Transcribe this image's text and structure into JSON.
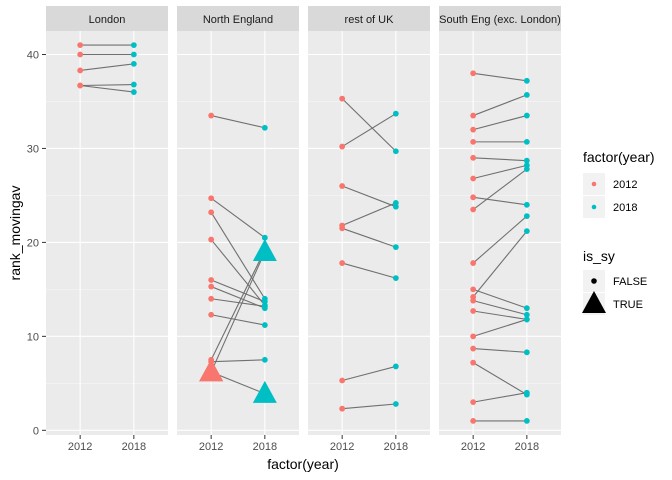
{
  "chart_data": {
    "type": "line",
    "xlabel": "factor(year)",
    "ylabel": "rank_movingav",
    "categories": [
      "2012",
      "2018"
    ],
    "ylim": [
      -0.5,
      42.5
    ],
    "y_ticks": [
      0,
      10,
      20,
      30,
      40
    ],
    "grid": true,
    "colors": {
      "2012": "#F8766D",
      "2018": "#00BFC4",
      "line": "#707070",
      "panel_bg": "#EBEBEB",
      "strip_bg": "#D9D9D9",
      "grid_major": "#FFFFFF"
    },
    "legend_position": "right",
    "legends": [
      {
        "title": "factor(year)",
        "type": "color",
        "entries": [
          "2012",
          "2018"
        ]
      },
      {
        "title": "is_sy",
        "type": "shape",
        "entries": [
          "FALSE",
          "TRUE"
        ]
      }
    ],
    "facets": [
      {
        "label": "London",
        "segments": [
          {
            "y2012": 41.0,
            "y2018": 41.0,
            "is_sy": false
          },
          {
            "y2012": 40.0,
            "y2018": 40.0,
            "is_sy": false
          },
          {
            "y2012": 38.3,
            "y2018": 39.0,
            "is_sy": false
          },
          {
            "y2012": 36.7,
            "y2018": 36.8,
            "is_sy": false
          },
          {
            "y2012": 36.7,
            "y2018": 36.0,
            "is_sy": false
          }
        ]
      },
      {
        "label": "North England",
        "segments": [
          {
            "y2012": 33.5,
            "y2018": 32.2,
            "is_sy": false
          },
          {
            "y2012": 24.7,
            "y2018": 20.5,
            "is_sy": false
          },
          {
            "y2012": 23.2,
            "y2018": 14.0,
            "is_sy": false
          },
          {
            "y2012": 20.3,
            "y2018": 13.3,
            "is_sy": false
          },
          {
            "y2012": 16.0,
            "y2018": 13.7,
            "is_sy": false
          },
          {
            "y2012": 15.3,
            "y2018": 13.0,
            "is_sy": false
          },
          {
            "y2012": 14.0,
            "y2018": 13.2,
            "is_sy": false
          },
          {
            "y2012": 12.3,
            "y2018": 11.2,
            "is_sy": false
          },
          {
            "y2012": 7.5,
            "y2018": 19.2,
            "is_sy": false
          },
          {
            "y2012": 7.3,
            "y2018": 7.5,
            "is_sy": false
          },
          {
            "y2012": 6.2,
            "y2018": 19.0,
            "is_sy": true
          },
          {
            "y2012": 6.2,
            "y2018": 3.9,
            "is_sy": true
          }
        ]
      },
      {
        "label": "rest of UK",
        "segments": [
          {
            "y2012": 35.3,
            "y2018": 29.7,
            "is_sy": false
          },
          {
            "y2012": 30.2,
            "y2018": 33.7,
            "is_sy": false
          },
          {
            "y2012": 26.0,
            "y2018": 23.8,
            "is_sy": false
          },
          {
            "y2012": 21.8,
            "y2018": 24.2,
            "is_sy": false
          },
          {
            "y2012": 21.5,
            "y2018": 19.5,
            "is_sy": false
          },
          {
            "y2012": 17.8,
            "y2018": 16.2,
            "is_sy": false
          },
          {
            "y2012": 5.3,
            "y2018": 6.8,
            "is_sy": false
          },
          {
            "y2012": 2.3,
            "y2018": 2.8,
            "is_sy": false
          }
        ]
      },
      {
        "label": "South Eng (exc. London)",
        "segments": [
          {
            "y2012": 38.0,
            "y2018": 37.2,
            "is_sy": false
          },
          {
            "y2012": 33.5,
            "y2018": 35.7,
            "is_sy": false
          },
          {
            "y2012": 32.0,
            "y2018": 33.5,
            "is_sy": false
          },
          {
            "y2012": 30.7,
            "y2018": 30.7,
            "is_sy": false
          },
          {
            "y2012": 29.0,
            "y2018": 28.7,
            "is_sy": false
          },
          {
            "y2012": 26.8,
            "y2018": 28.2,
            "is_sy": false
          },
          {
            "y2012": 24.8,
            "y2018": 24.0,
            "is_sy": false
          },
          {
            "y2012": 23.5,
            "y2018": 27.8,
            "is_sy": false
          },
          {
            "y2012": 17.8,
            "y2018": 22.8,
            "is_sy": false
          },
          {
            "y2012": 15.0,
            "y2018": 13.0,
            "is_sy": false
          },
          {
            "y2012": 14.2,
            "y2018": 21.2,
            "is_sy": false
          },
          {
            "y2012": 13.8,
            "y2018": 12.3,
            "is_sy": false
          },
          {
            "y2012": 12.7,
            "y2018": 11.8,
            "is_sy": false
          },
          {
            "y2012": 10.0,
            "y2018": 11.8,
            "is_sy": false
          },
          {
            "y2012": 8.7,
            "y2018": 8.3,
            "is_sy": false
          },
          {
            "y2012": 7.2,
            "y2018": 3.8,
            "is_sy": false
          },
          {
            "y2012": 3.0,
            "y2018": 4.0,
            "is_sy": false
          },
          {
            "y2012": 1.0,
            "y2018": 1.0,
            "is_sy": false
          }
        ]
      }
    ]
  }
}
